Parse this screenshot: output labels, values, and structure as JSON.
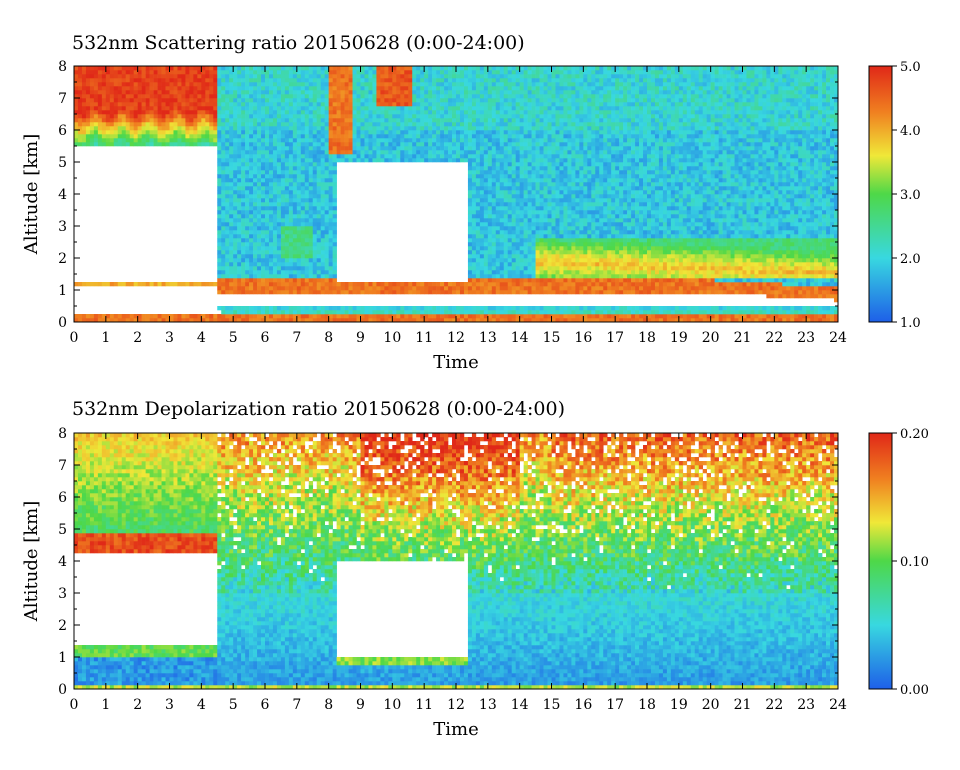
{
  "chart_data": [
    {
      "type": "heatmap",
      "title": "532nm Scattering ratio  20150628 (0:00-24:00)",
      "xlabel": "Time",
      "ylabel": "Altitude [km]",
      "xlim": [
        0,
        24
      ],
      "ylim": [
        0,
        8
      ],
      "x_ticks": [
        "0",
        "1",
        "2",
        "3",
        "4",
        "5",
        "6",
        "7",
        "8",
        "9",
        "10",
        "11",
        "12",
        "13",
        "14",
        "15",
        "16",
        "17",
        "18",
        "19",
        "20",
        "21",
        "22",
        "23",
        "24"
      ],
      "y_ticks": [
        "0",
        "1",
        "2",
        "3",
        "4",
        "5",
        "6",
        "7",
        "8"
      ],
      "colorbar": {
        "min": 1.0,
        "max": 5.0,
        "tick_labels": [
          "1.0",
          "2.0",
          "3.0",
          "4.0",
          "5.0"
        ]
      },
      "colors": {
        "low": "#1e5fe8",
        "mid": "#38d8e0",
        "green": "#4ed848",
        "yellow": "#f0e838",
        "high": "#e83018",
        "missing": "#ffffff"
      },
      "features": [
        {
          "kind": "cloud",
          "time": [
            0,
            4.5
          ],
          "altitude": [
            5.5,
            8
          ],
          "value": 4.5
        },
        {
          "kind": "cloud",
          "time": [
            8,
            8.7
          ],
          "altitude": [
            5.3,
            8
          ],
          "value": 4.0
        },
        {
          "kind": "cloud",
          "time": [
            9.5,
            10.6
          ],
          "altitude": [
            6.8,
            8
          ],
          "value": 4.5
        },
        {
          "kind": "boundary_layer_top",
          "time": [
            4.6,
            24
          ],
          "altitude": [
            0.9,
            1.3
          ],
          "value": 4.5
        },
        {
          "kind": "aerosol_layer",
          "time": [
            14.5,
            24
          ],
          "altitude": [
            1.4,
            2.6
          ],
          "value": 3.2
        },
        {
          "kind": "no_data",
          "time": [
            0,
            4.5
          ],
          "altitude": [
            1.3,
            5.2
          ]
        },
        {
          "kind": "no_data",
          "time": [
            8.2,
            12.4
          ],
          "altitude": [
            1.2,
            5.0
          ]
        }
      ]
    },
    {
      "type": "heatmap",
      "title": "532nm Depolarization ratio  20150628 (0:00-24:00)",
      "xlabel": "Time",
      "ylabel": "Altitude [km]",
      "xlim": [
        0,
        24
      ],
      "ylim": [
        0,
        8
      ],
      "x_ticks": [
        "0",
        "1",
        "2",
        "3",
        "4",
        "5",
        "6",
        "7",
        "8",
        "9",
        "10",
        "11",
        "12",
        "13",
        "14",
        "15",
        "16",
        "17",
        "18",
        "19",
        "20",
        "21",
        "22",
        "23",
        "24"
      ],
      "y_ticks": [
        "0",
        "1",
        "2",
        "3",
        "4",
        "5",
        "6",
        "7",
        "8"
      ],
      "colorbar": {
        "min": 0.0,
        "max": 0.2,
        "tick_labels": [
          "0.00",
          "0.10",
          "0.20"
        ]
      },
      "colors": {
        "low": "#1e5fe8",
        "mid": "#38d8e0",
        "green": "#4ed848",
        "yellow": "#f0e838",
        "high": "#e83018",
        "missing": "#ffffff"
      },
      "features": [
        {
          "kind": "cloud",
          "time": [
            0,
            4.5
          ],
          "altitude": [
            4.2,
            8
          ],
          "value": 0.12
        },
        {
          "kind": "noisy_high_depol",
          "time": [
            4.6,
            24
          ],
          "altitude": [
            4,
            8
          ],
          "value": 0.15
        },
        {
          "kind": "low_depol_boundary_layer",
          "time": [
            4.6,
            24
          ],
          "altitude": [
            0,
            3
          ],
          "value": 0.03
        },
        {
          "kind": "no_data",
          "time": [
            0,
            4.5
          ],
          "altitude": [
            1.4,
            4.2
          ]
        },
        {
          "kind": "no_data",
          "time": [
            8.2,
            12.4
          ],
          "altitude": [
            1.0,
            4.0
          ]
        }
      ]
    }
  ]
}
